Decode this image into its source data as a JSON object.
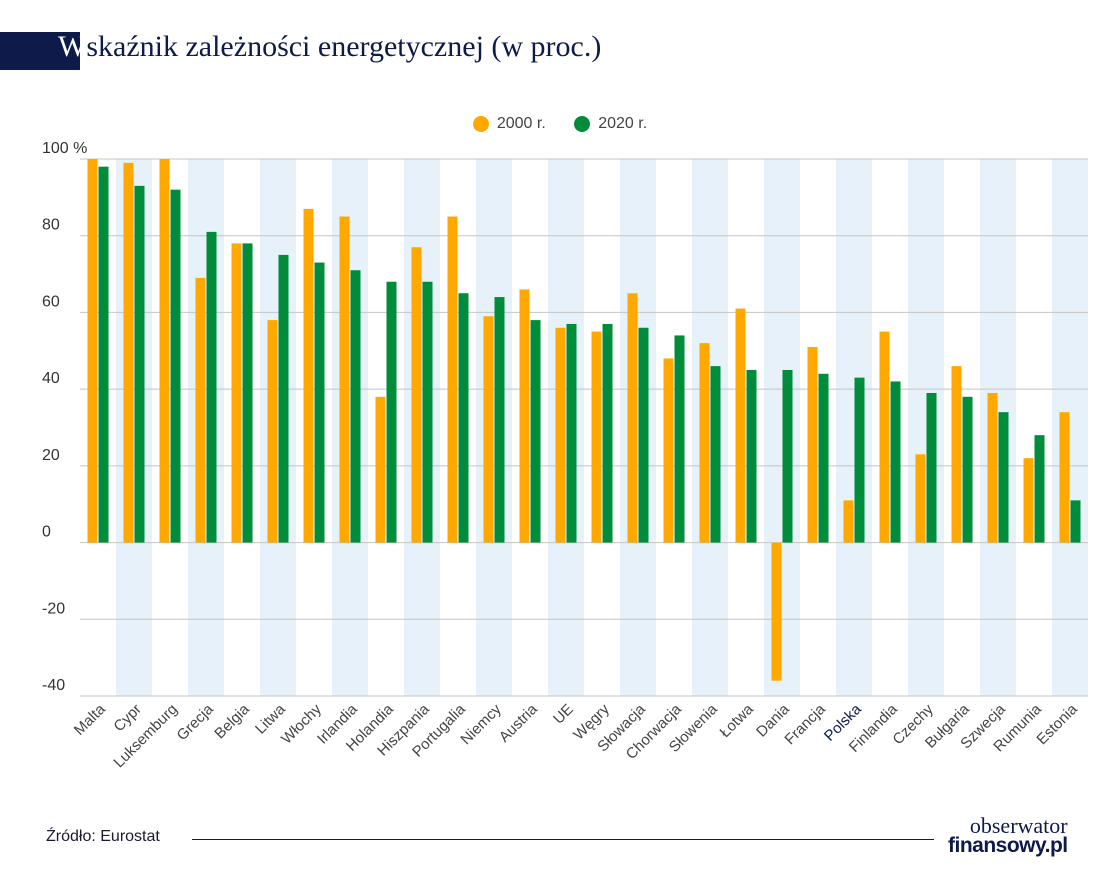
{
  "title": "Wskaźnik zależności energetycznej (w proc.)",
  "title_first_letter": "W",
  "title_rest": "skaźnik zależności energetycznej (w proc.)",
  "colors": {
    "series_2000": "#ffa800",
    "series_2020": "#008c3a",
    "band": "#e6f1fa",
    "title_bar": "#0d1a4a",
    "highlight_label": "#0d1a4a"
  },
  "source": "Źródło: Eurostat",
  "logo": {
    "line1": "obserwator",
    "line2": "finansowy.pl"
  },
  "chart_data": {
    "type": "bar",
    "title": "Wskaźnik zależności energetycznej (w proc.)",
    "ylim": [
      -40,
      100
    ],
    "yticks": [
      100,
      80,
      60,
      40,
      20,
      0,
      -20,
      -40
    ],
    "ytick_labels": [
      "100 %",
      "80",
      "60",
      "40",
      "20",
      "0",
      "-20",
      "-40"
    ],
    "grid": true,
    "legend_position": "top-center",
    "highlight_category": "Polska",
    "categories": [
      "Malta",
      "Cypr",
      "Luksemburg",
      "Grecja",
      "Belgia",
      "Litwa",
      "Włochy",
      "Irlandia",
      "Holandia",
      "Hiszpania",
      "Portugalia",
      "Niemcy",
      "Austria",
      "UE",
      "Węgry",
      "Słowacja",
      "Chorwacja",
      "Słowenia",
      "Łotwa",
      "Dania",
      "Francja",
      "Polska",
      "Finlandia",
      "Czechy",
      "Bułgaria",
      "Szwecja",
      "Rumunia",
      "Estonia"
    ],
    "series": [
      {
        "name": "2000 r.",
        "values": [
          100,
          99,
          100,
          69,
          78,
          58,
          87,
          85,
          38,
          77,
          85,
          59,
          66,
          56,
          55,
          65,
          48,
          52,
          61,
          -36,
          51,
          11,
          55,
          23,
          46,
          39,
          22,
          34
        ]
      },
      {
        "name": "2020 r.",
        "values": [
          98,
          93,
          92,
          81,
          78,
          75,
          73,
          71,
          68,
          68,
          65,
          64,
          58,
          57,
          57,
          56,
          54,
          46,
          45,
          45,
          44,
          43,
          42,
          39,
          38,
          34,
          28,
          11
        ]
      }
    ]
  }
}
